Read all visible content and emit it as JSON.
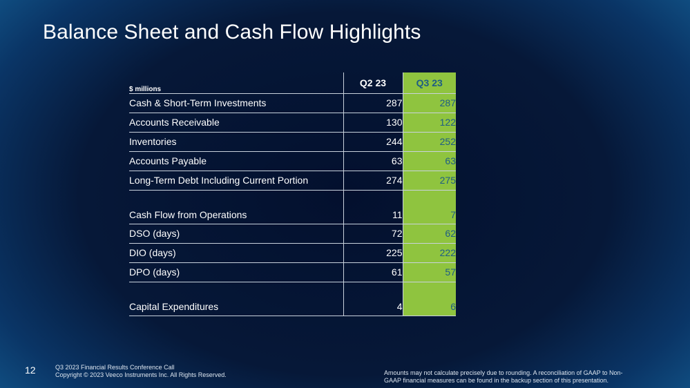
{
  "title": "Balance Sheet and Cash Flow Highlights",
  "table": {
    "unit_label": "$ millions",
    "columns": [
      "Q2 23",
      "Q3 23"
    ],
    "rows": [
      {
        "label": "Cash & Short-Term Investments",
        "q2": "287",
        "q3": "287"
      },
      {
        "label": "Accounts Receivable",
        "q2": "130",
        "q3": "122"
      },
      {
        "label": "Inventories",
        "q2": "244",
        "q3": "252"
      },
      {
        "label": "Accounts Payable",
        "q2": "63",
        "q3": "63"
      },
      {
        "label": "Long-Term Debt Including Current Portion",
        "q2": "274",
        "q3": "275"
      },
      {
        "label": "Cash Flow from Operations",
        "q2": "11",
        "q3": "7"
      },
      {
        "label": "DSO (days)",
        "q2": "72",
        "q3": "62"
      },
      {
        "label": "DIO (days)",
        "q2": "225",
        "q3": "222"
      },
      {
        "label": "DPO (days)",
        "q2": "61",
        "q3": "57"
      },
      {
        "label": "Capital Expenditures",
        "q2": "4",
        "q3": "6"
      }
    ]
  },
  "footer": {
    "page_number": "12",
    "line1": "Q3 2023 Financial Results Conference Call",
    "line2": "Copyright © 2023 Veeco Instruments Inc. All Rights Reserved.",
    "disclaimer_line1": "Amounts may not calculate precisely due to rounding.  A reconciliation of GAAP to Non-",
    "disclaimer_line2": "GAAP financial measures can be found in the backup section of this presentation."
  },
  "colors": {
    "highlight_column": "#8fc43f",
    "highlight_text": "#1d5c85"
  }
}
